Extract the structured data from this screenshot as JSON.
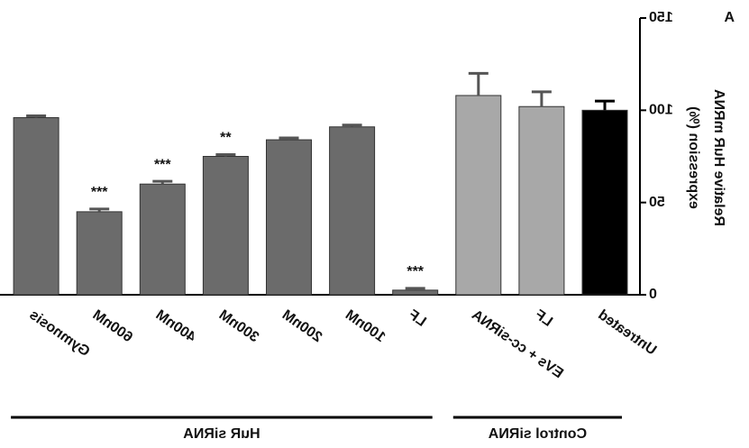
{
  "chart_data": {
    "type": "bar",
    "mirrored": true,
    "panel_label": "A",
    "y_label": [
      "Relative HuR mRNA",
      "expression (%)"
    ],
    "categories": [
      "Untreated",
      "LF",
      "EVs + cc-siRNA",
      "LF",
      "100nM",
      "200nM",
      "300nM",
      "400nM",
      "600nM",
      "Gymnosis"
    ],
    "values": [
      100,
      102,
      108,
      2.5,
      91,
      84,
      75,
      60,
      45,
      96
    ],
    "errors": [
      5,
      8,
      12,
      1,
      1,
      1,
      1,
      1.5,
      1.5,
      1
    ],
    "colors": [
      "#000000",
      "#a8a8a8",
      "#a8a8a8",
      "#6b6b6b",
      "#6b6b6b",
      "#6b6b6b",
      "#6b6b6b",
      "#6b6b6b",
      "#6b6b6b",
      "#6b6b6b"
    ],
    "annotations": [
      null,
      null,
      null,
      "***",
      null,
      null,
      "**",
      "***",
      "***",
      null
    ],
    "groups": [
      {
        "label": "Control siRNA",
        "first": 0,
        "last": 2
      },
      {
        "label": "HuR siRNA",
        "first": 3,
        "last": 9
      }
    ],
    "ylim": [
      0,
      150
    ],
    "yticks": [
      0,
      50,
      100,
      150
    ]
  }
}
